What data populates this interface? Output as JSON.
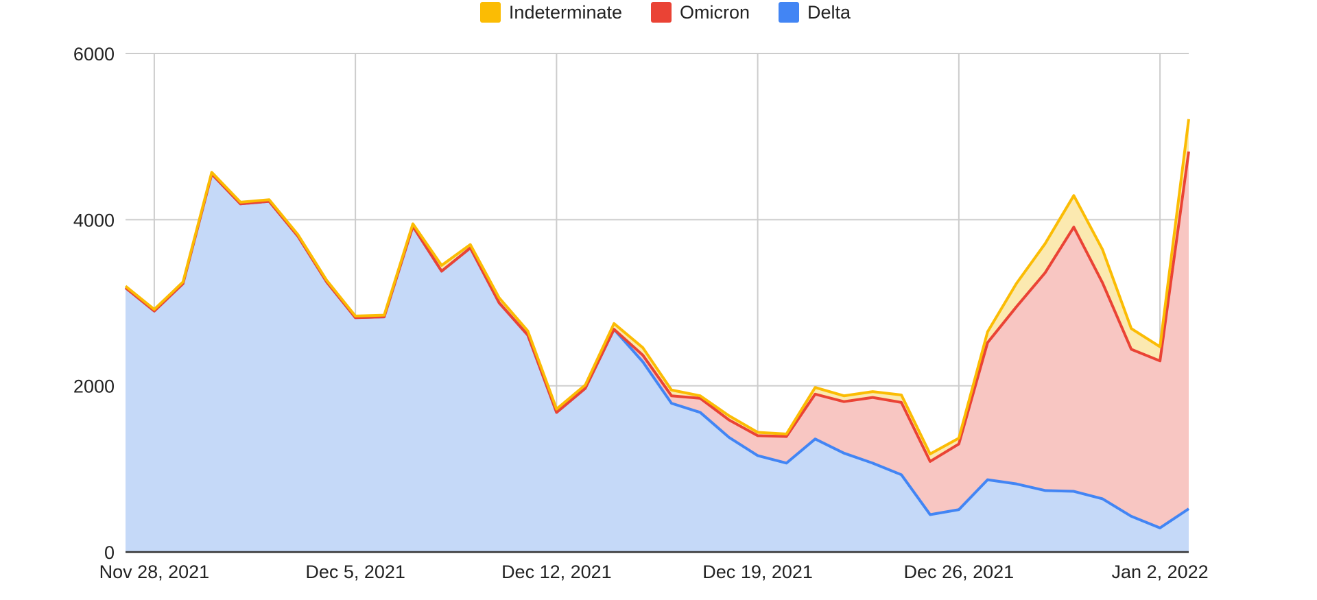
{
  "chart_data": {
    "type": "area",
    "stacked": true,
    "title": "",
    "xlabel": "",
    "ylabel": "",
    "ylim": [
      0,
      6000
    ],
    "y_ticks": [
      0,
      2000,
      4000,
      6000
    ],
    "y_tick_labels": [
      "0",
      "2000",
      "4000",
      "6000"
    ],
    "x_start": "2021-11-27",
    "x_end": "2022-01-03",
    "x_ticks": [
      "2021-11-28",
      "2021-12-05",
      "2021-12-12",
      "2021-12-19",
      "2021-12-26",
      "2022-01-02"
    ],
    "x_tick_labels": [
      "Nov 28, 2021",
      "Dec 5, 2021",
      "Dec 12, 2021",
      "Dec 19, 2021",
      "Dec 26, 2021",
      "Jan 2, 2022"
    ],
    "grid": true,
    "legend_position": "top-center",
    "x": [
      "2021-11-27",
      "2021-11-28",
      "2021-11-29",
      "2021-11-30",
      "2021-12-01",
      "2021-12-02",
      "2021-12-03",
      "2021-12-04",
      "2021-12-05",
      "2021-12-06",
      "2021-12-07",
      "2021-12-08",
      "2021-12-09",
      "2021-12-10",
      "2021-12-11",
      "2021-12-12",
      "2021-12-13",
      "2021-12-14",
      "2021-12-15",
      "2021-12-16",
      "2021-12-17",
      "2021-12-18",
      "2021-12-19",
      "2021-12-20",
      "2021-12-21",
      "2021-12-22",
      "2021-12-23",
      "2021-12-24",
      "2021-12-25",
      "2021-12-26",
      "2021-12-27",
      "2021-12-28",
      "2021-12-29",
      "2021-12-30",
      "2021-12-31",
      "2022-01-01",
      "2022-01-02",
      "2022-01-03"
    ],
    "series": [
      {
        "name": "Delta",
        "color": "#4285F4",
        "fill": "#C5D9F8",
        "values": [
          3180,
          2900,
          3230,
          4550,
          4190,
          4220,
          3800,
          3250,
          2820,
          2830,
          3920,
          3380,
          3660,
          3000,
          2610,
          1680,
          1970,
          2680,
          2290,
          1790,
          1680,
          1380,
          1160,
          1070,
          1360,
          1190,
          1070,
          930,
          450,
          510,
          870,
          820,
          740,
          730,
          640,
          430,
          290,
          520
        ]
      },
      {
        "name": "Omicron",
        "color": "#EA4335",
        "fill": "#F8C6C2",
        "values": [
          0,
          0,
          0,
          0,
          0,
          0,
          0,
          0,
          0,
          0,
          0,
          0,
          0,
          0,
          0,
          0,
          0,
          0,
          80,
          90,
          170,
          210,
          240,
          320,
          540,
          620,
          790,
          870,
          640,
          790,
          1650,
          2130,
          2620,
          3180,
          2600,
          2010,
          2010,
          4300
        ]
      },
      {
        "name": "Indeterminate",
        "color": "#FBBC04",
        "fill": "#FBE9B0",
        "values": [
          20,
          20,
          20,
          20,
          20,
          20,
          20,
          20,
          20,
          20,
          30,
          70,
          40,
          60,
          50,
          40,
          40,
          70,
          90,
          70,
          30,
          50,
          40,
          30,
          80,
          70,
          70,
          90,
          90,
          70,
          130,
          280,
          350,
          380,
          400,
          250,
          170,
          390
        ]
      }
    ]
  }
}
